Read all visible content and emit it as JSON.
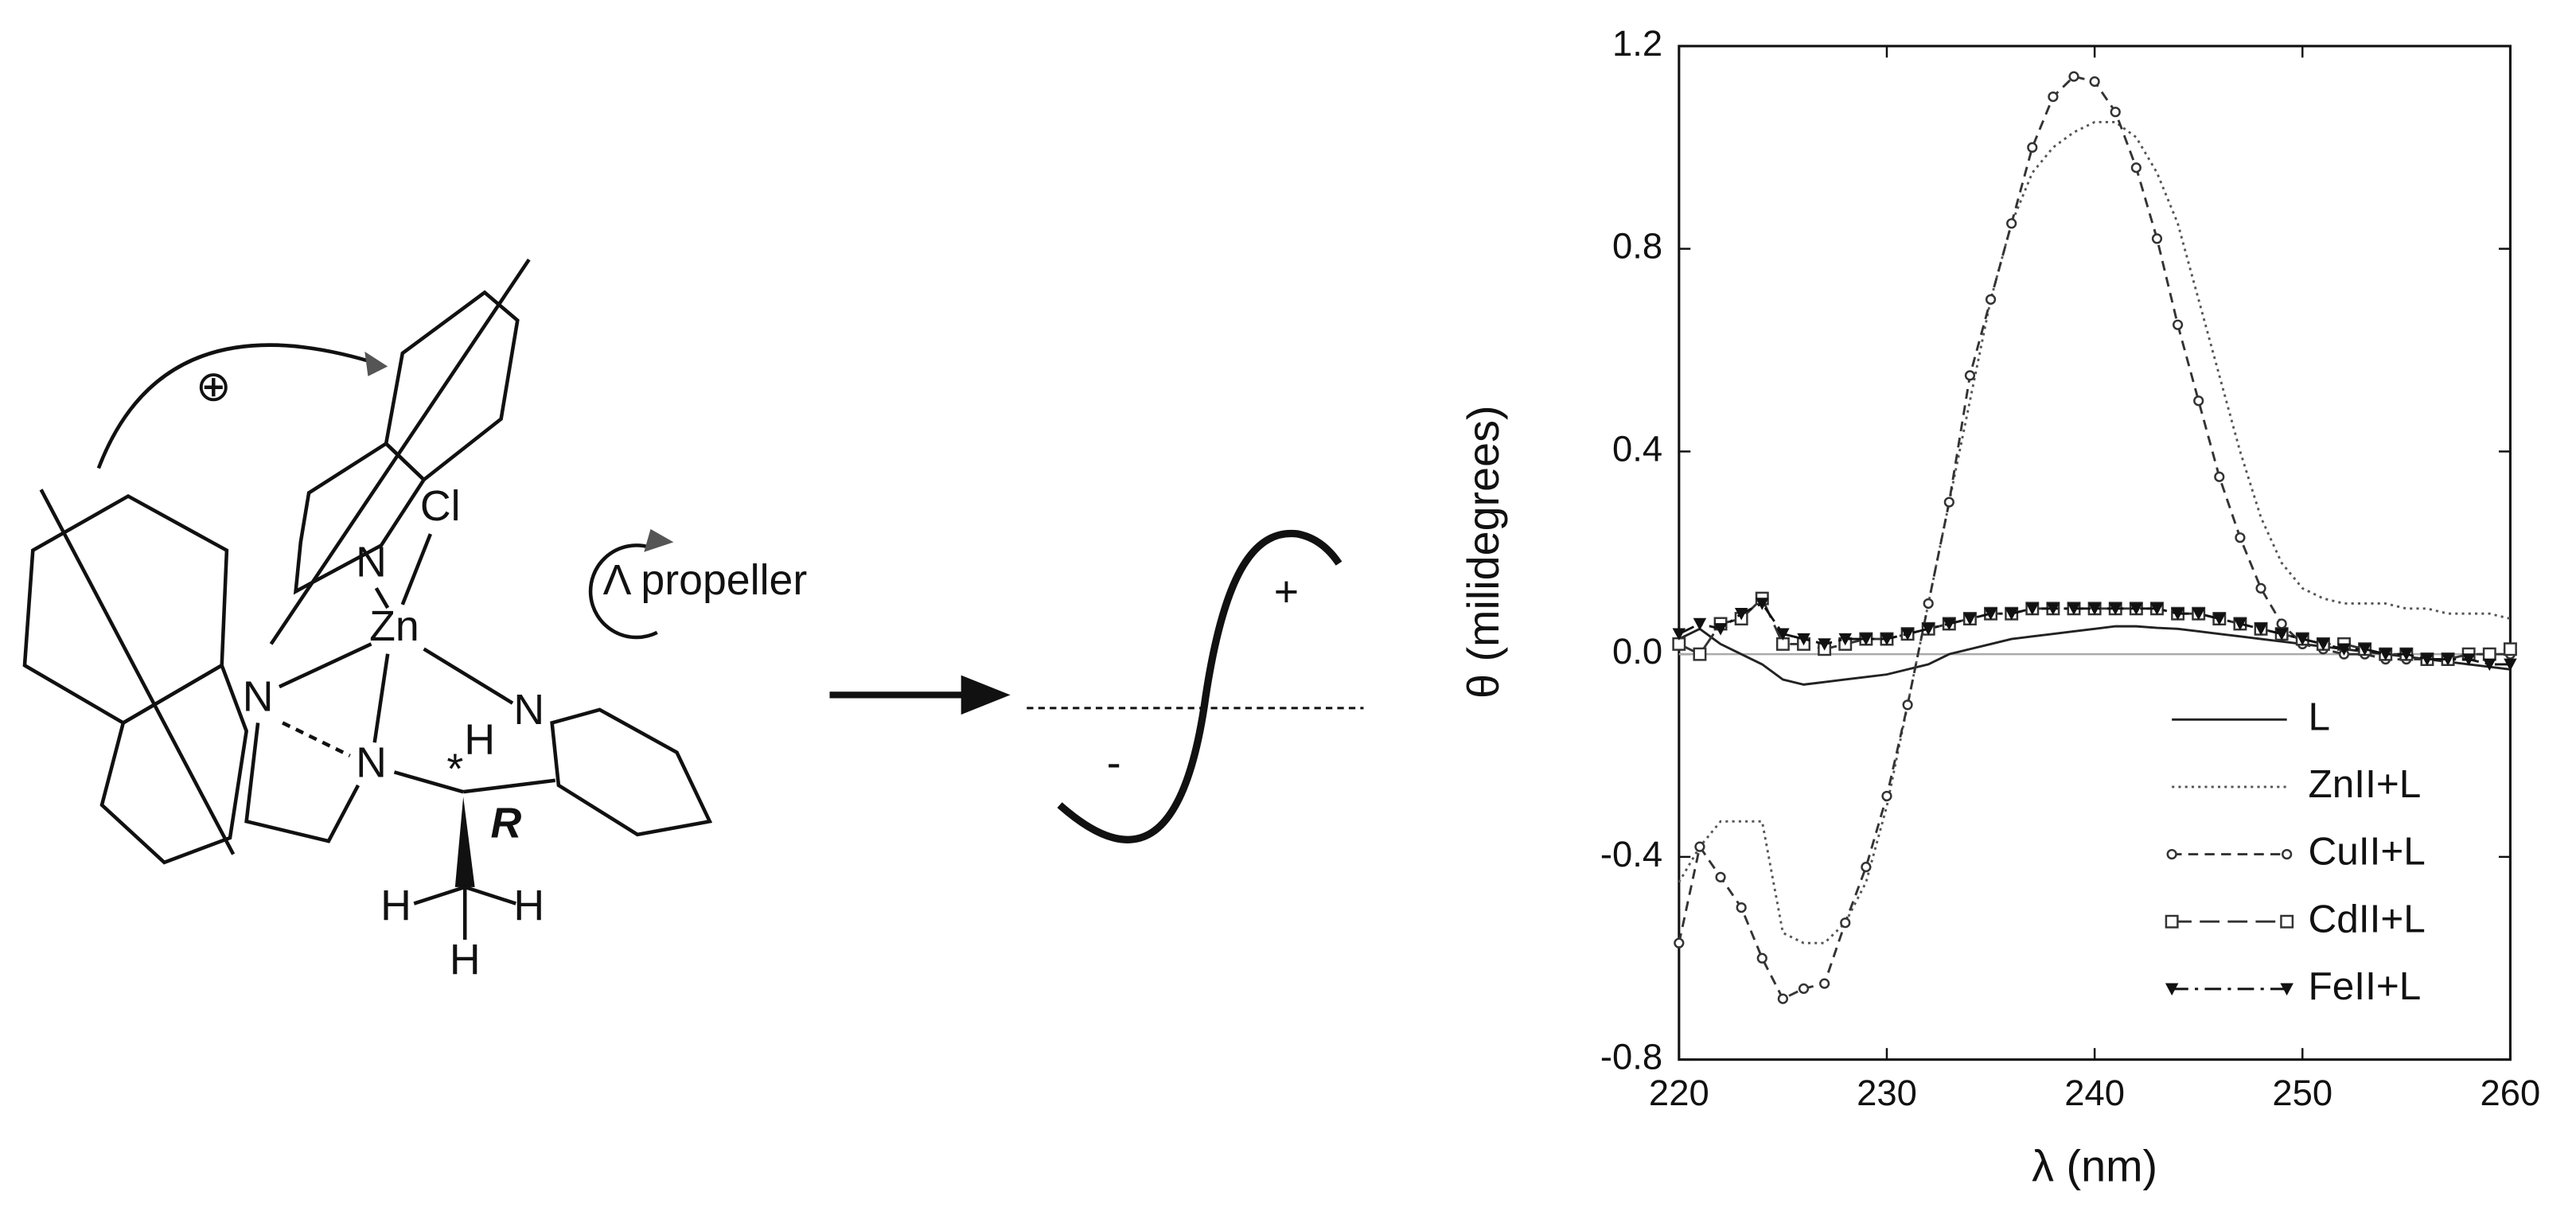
{
  "diagram": {
    "atoms": [
      "Cl",
      "N",
      "Zn",
      "N",
      "N",
      "H",
      "*",
      "N",
      "R",
      "H",
      "H",
      "H"
    ],
    "charge": "⊕",
    "label": "Λ propeller",
    "plus": "+",
    "minus": "-"
  },
  "chart_data": {
    "type": "line",
    "x_label": "λ (nm)",
    "y_label": "θ (milidegrees)",
    "x": [
      220,
      221,
      222,
      223,
      224,
      225,
      226,
      227,
      228,
      229,
      230,
      231,
      232,
      233,
      234,
      235,
      236,
      237,
      238,
      239,
      240,
      241,
      242,
      243,
      244,
      245,
      246,
      247,
      248,
      249,
      250,
      251,
      252,
      253,
      254,
      255,
      256,
      257,
      258,
      259,
      260
    ],
    "xlim": [
      220,
      260
    ],
    "xticks": [
      220,
      230,
      240,
      250,
      260
    ],
    "ylim": [
      -0.8,
      1.2
    ],
    "yticks": [
      1.2,
      0.8,
      0.4,
      {
        "value": 0,
        "label": "0.0"
      },
      -0.4,
      -0.8
    ],
    "series": [
      {
        "name": "L",
        "color": "#222",
        "style": "solid",
        "marker": "none",
        "values": [
          0.03,
          0.05,
          0.02,
          0.0,
          -0.02,
          -0.05,
          -0.06,
          -0.055,
          -0.05,
          -0.045,
          -0.04,
          -0.03,
          -0.02,
          0.0,
          0.01,
          0.02,
          0.03,
          0.035,
          0.04,
          0.045,
          0.05,
          0.055,
          0.055,
          0.052,
          0.05,
          0.045,
          0.04,
          0.035,
          0.03,
          0.025,
          0.02,
          0.015,
          0.01,
          0.005,
          0.0,
          -0.005,
          -0.01,
          -0.015,
          -0.02,
          -0.025,
          -0.03
        ]
      },
      {
        "name": "ZnII+L",
        "color": "#555",
        "style": "dotted",
        "marker": "none",
        "values": [
          -0.45,
          -0.38,
          -0.33,
          -0.33,
          -0.33,
          -0.55,
          -0.57,
          -0.57,
          -0.53,
          -0.45,
          -0.3,
          -0.1,
          0.1,
          0.3,
          0.5,
          0.7,
          0.85,
          0.95,
          1.0,
          1.03,
          1.05,
          1.05,
          1.02,
          0.95,
          0.85,
          0.7,
          0.55,
          0.4,
          0.27,
          0.18,
          0.13,
          0.11,
          0.1,
          0.1,
          0.1,
          0.09,
          0.09,
          0.08,
          0.08,
          0.08,
          0.07
        ]
      },
      {
        "name": "CuII+L",
        "color": "#333",
        "style": "short-dash",
        "marker": "dot",
        "values": [
          -0.57,
          -0.38,
          -0.44,
          -0.5,
          -0.6,
          -0.68,
          -0.66,
          -0.65,
          -0.53,
          -0.42,
          -0.28,
          -0.1,
          0.1,
          0.3,
          0.55,
          0.7,
          0.85,
          1.0,
          1.1,
          1.14,
          1.13,
          1.07,
          0.96,
          0.82,
          0.65,
          0.5,
          0.35,
          0.23,
          0.13,
          0.06,
          0.02,
          0.01,
          0.0,
          0.0,
          -0.01,
          -0.01,
          -0.01,
          -0.01,
          0.0,
          0.0,
          0.0
        ]
      },
      {
        "name": "CdII+L",
        "color": "#333",
        "style": "long-dash",
        "marker": "square",
        "values": [
          0.02,
          0.0,
          0.06,
          0.07,
          0.11,
          0.02,
          0.02,
          0.01,
          0.02,
          0.03,
          0.03,
          0.04,
          0.05,
          0.06,
          0.07,
          0.08,
          0.08,
          0.09,
          0.09,
          0.09,
          0.09,
          0.09,
          0.09,
          0.09,
          0.08,
          0.08,
          0.07,
          0.06,
          0.05,
          0.04,
          0.03,
          0.02,
          0.02,
          0.01,
          0.0,
          0.0,
          -0.01,
          -0.01,
          0.0,
          0.0,
          0.01
        ]
      },
      {
        "name": "FeII+L",
        "color": "#111",
        "style": "dash-dot",
        "marker": "triangle",
        "values": [
          0.04,
          0.06,
          0.05,
          0.08,
          0.1,
          0.04,
          0.03,
          0.02,
          0.03,
          0.03,
          0.03,
          0.04,
          0.05,
          0.06,
          0.07,
          0.08,
          0.08,
          0.09,
          0.09,
          0.09,
          0.09,
          0.09,
          0.09,
          0.09,
          0.08,
          0.08,
          0.07,
          0.06,
          0.05,
          0.04,
          0.03,
          0.02,
          0.01,
          0.01,
          0.0,
          0.0,
          -0.01,
          -0.01,
          -0.01,
          -0.02,
          -0.02
        ]
      }
    ],
    "legend": "lower-right",
    "grid": false
  }
}
